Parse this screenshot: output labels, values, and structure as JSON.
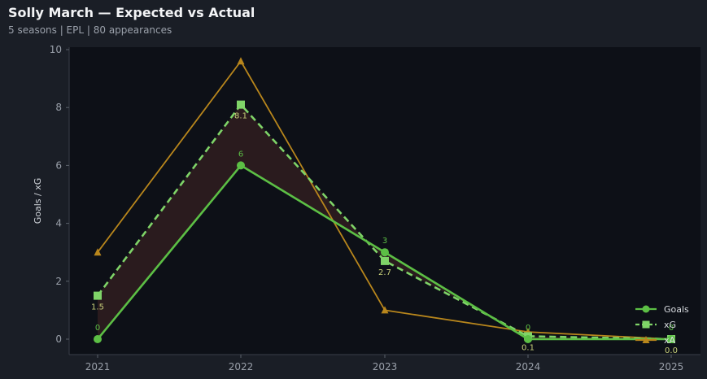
{
  "header": {
    "title": "Solly March — Expected vs Actual",
    "subtitle": "5 seasons | EPL | 80 appearances"
  },
  "colors": {
    "background": "#1a1e26",
    "plot_bg": "#0d1017",
    "goals": "#5cbf45",
    "xg": "#7fd468",
    "xa": "#b8861c",
    "gap_fill": "#2c1c1f"
  },
  "chart_data": {
    "type": "line",
    "title": "Solly March — Expected vs Actual",
    "subtitle": "5 seasons | EPL | 80 appearances",
    "xlabel": "",
    "ylabel": "Goals / xG",
    "x": [
      "2021",
      "2022",
      "2023",
      "2024",
      "2025"
    ],
    "ylim": [
      0,
      10
    ],
    "yticks": [
      0,
      2,
      4,
      6,
      8,
      10
    ],
    "grid": false,
    "legend_position": "bottom-right",
    "series": [
      {
        "name": "Goals",
        "values": [
          0,
          6,
          3,
          0,
          0
        ],
        "marker": "circle",
        "style": "solid",
        "labels": [
          "0",
          "6",
          "3",
          "0",
          "0"
        ]
      },
      {
        "name": "xG",
        "values": [
          1.5,
          8.1,
          2.7,
          0.1,
          0.0
        ],
        "marker": "square",
        "style": "dashed",
        "labels": [
          "1.5",
          "8.1",
          "2.7",
          "0.1",
          "0.0"
        ]
      },
      {
        "name": "xA",
        "values": [
          3.0,
          9.6,
          1.0,
          0.25,
          0.0
        ],
        "marker": "triangle",
        "style": "solid"
      }
    ]
  }
}
